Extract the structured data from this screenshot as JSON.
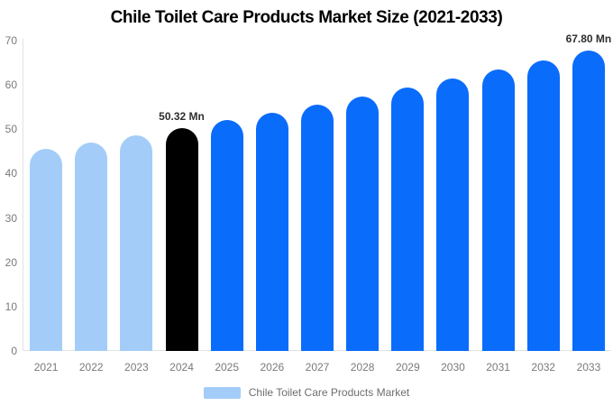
{
  "header": {
    "title": "Chile Toilet Care Products Market Size (2021-2033)"
  },
  "legend": {
    "items": [
      {
        "label": "Chile Toilet Care Products Market",
        "color": "#a3cdf8"
      }
    ]
  },
  "colors": {
    "historical_bar": "#a3cdf8",
    "base_year_bar": "#000000",
    "forecast_bar": "#0a6cfb",
    "axis_line": "#e2e2e2",
    "tick_label": "#7a7a7a",
    "data_label": "#2e2e2e",
    "legend_text": "#6e6e6e",
    "title": "#000000",
    "background": "#ffffff"
  },
  "chart_data": {
    "type": "bar",
    "title": "Chile Toilet Care Products Market Size (2021-2033)",
    "unit": "Mn",
    "categories": [
      "2021",
      "2022",
      "2023",
      "2024",
      "2025",
      "2026",
      "2027",
      "2028",
      "2029",
      "2030",
      "2031",
      "2032",
      "2033"
    ],
    "values": [
      45.55,
      47.09,
      48.68,
      50.32,
      52.02,
      53.77,
      55.58,
      57.45,
      59.38,
      61.38,
      63.44,
      65.58,
      67.8
    ],
    "bar_colors": [
      "#a3cdf8",
      "#a3cdf8",
      "#a3cdf8",
      "#000000",
      "#0a6cfb",
      "#0a6cfb",
      "#0a6cfb",
      "#0a6cfb",
      "#0a6cfb",
      "#0a6cfb",
      "#0a6cfb",
      "#0a6cfb",
      "#0a6cfb"
    ],
    "data_labels": [
      {
        "index": 3,
        "text": "50.32 Mn"
      },
      {
        "index": 12,
        "text": "67.80 Mn"
      }
    ],
    "yticks": [
      0,
      10,
      20,
      30,
      40,
      50,
      60,
      70
    ],
    "ylim": [
      0,
      70
    ],
    "xlabel": "",
    "ylabel": "",
    "grid": false,
    "legend_position": "bottom",
    "legend_entries": [
      "Chile Toilet Care Products Market"
    ]
  }
}
